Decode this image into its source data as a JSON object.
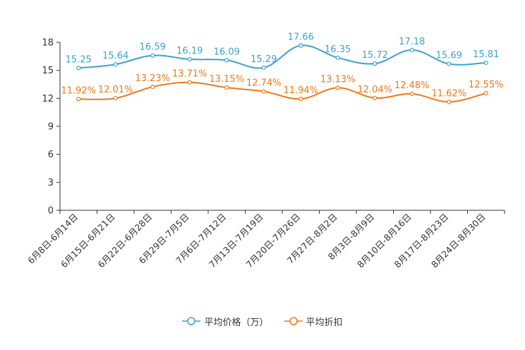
{
  "chart_data": {
    "type": "line",
    "categories": [
      "6月8日-6月14日",
      "6月15日-6月21日",
      "6月22日-6月28日",
      "6月29日-7月5日",
      "7月6日-7月12日",
      "7月13日-7月19日",
      "7月20日-7月26日",
      "7月27日-8月2日",
      "8月3日-8月9日",
      "8月10日-8月16日",
      "8月17日-8月23日",
      "8月24日-8月30日"
    ],
    "series": [
      {
        "name": "平均价格（万）",
        "color": "#3ba1d1",
        "values": [
          15.25,
          15.64,
          16.59,
          16.19,
          16.09,
          15.29,
          17.66,
          16.35,
          15.72,
          17.18,
          15.69,
          15.81
        ],
        "labels": [
          "15.25",
          "15.64",
          "16.59",
          "16.19",
          "16.09",
          "15.29",
          "17.66",
          "16.35",
          "15.72",
          "17.18",
          "15.69",
          "15.81"
        ]
      },
      {
        "name": "平均折扣",
        "color": "#f07818",
        "values": [
          11.92,
          12.01,
          13.23,
          13.71,
          13.15,
          12.74,
          11.94,
          13.13,
          12.04,
          12.48,
          11.62,
          12.55
        ],
        "labels": [
          "11.92%",
          "12.01%",
          "13.23%",
          "13.71%",
          "13.15%",
          "12.74%",
          "11.94%",
          "13.13%",
          "12.04%",
          "12.48%",
          "11.62%",
          "12.55%"
        ]
      }
    ],
    "yticks": [
      0,
      3,
      6,
      9,
      12,
      15,
      18
    ],
    "ylim": [
      0,
      18
    ],
    "title": "",
    "xlabel": "",
    "ylabel": "",
    "grid": false,
    "legend_position": "bottom-center"
  }
}
